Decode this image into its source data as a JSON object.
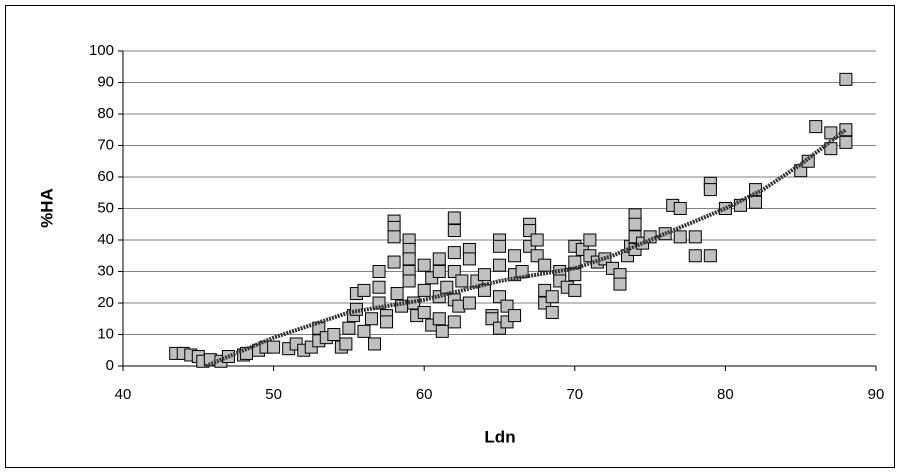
{
  "chart_data": {
    "type": "scatter",
    "x_label": "Ldn",
    "y_label": "%HA",
    "xlim": [
      40,
      90
    ],
    "xticks": [
      40,
      50,
      60,
      70,
      80,
      90
    ],
    "ylim": [
      0,
      100
    ],
    "yticks": [
      0,
      10,
      20,
      30,
      40,
      50,
      60,
      70,
      80,
      90,
      100
    ],
    "grid": true,
    "series": [
      {
        "color": "#c0c0c0",
        "x": [
          43.5,
          44,
          44.5,
          45,
          45.3,
          45.8,
          46.5,
          47,
          48,
          48.2,
          49,
          49.5,
          50,
          51,
          51.5,
          52,
          52.5,
          53,
          53,
          53.5,
          54,
          54.5,
          54.8,
          55,
          55.3,
          55.5,
          55.5,
          56,
          56,
          56.5,
          56.7,
          57,
          57,
          57,
          57.5,
          57.5,
          58,
          58,
          58,
          58,
          58.2,
          58.5,
          59,
          59,
          59,
          59,
          59,
          59.3,
          59.5,
          60,
          60,
          60,
          60.5,
          60.5,
          61,
          61,
          61,
          61,
          61.2,
          61.5,
          62,
          62,
          62,
          62,
          62,
          62,
          62.3,
          62.5,
          63,
          63,
          63,
          63.5,
          64,
          64,
          64.5,
          64.5,
          65,
          65,
          65,
          65,
          65,
          65.5,
          65.5,
          66,
          66,
          66,
          66.5,
          67,
          67,
          67,
          67.5,
          67.5,
          68,
          68,
          68,
          68.5,
          68.5,
          69,
          69,
          69.5,
          70,
          70,
          70,
          70,
          70.5,
          71,
          71,
          71.5,
          72,
          72.5,
          73,
          73,
          73.5,
          73.7,
          74,
          74,
          74,
          74,
          74.5,
          75,
          76,
          76.5,
          77,
          77,
          78,
          78,
          79,
          79,
          79,
          80,
          81,
          82,
          82,
          85,
          85.5,
          86,
          87,
          87,
          88,
          88,
          88
        ],
        "values": [
          4,
          4,
          3.5,
          3,
          1.5,
          2,
          1.5,
          3,
          3.5,
          4,
          5,
          6,
          6,
          5.5,
          7,
          5,
          6,
          8,
          12,
          9,
          10,
          6,
          7,
          12,
          16,
          18,
          23,
          24,
          11,
          15,
          7,
          30,
          25,
          20,
          16,
          14,
          46,
          44,
          41,
          33,
          23,
          19,
          40,
          37,
          34,
          30,
          27,
          20,
          16,
          32,
          24,
          17,
          13,
          28,
          34,
          30,
          22,
          15,
          11,
          25,
          47,
          43,
          36,
          30,
          21,
          14,
          19,
          27,
          37,
          34,
          20,
          27,
          29,
          24,
          16,
          15,
          40,
          38,
          32,
          22,
          12,
          19,
          14,
          35,
          29,
          16,
          30,
          45,
          43,
          38,
          40,
          35,
          32,
          24,
          20,
          17,
          22,
          30,
          27,
          25,
          38,
          33,
          29,
          24,
          37,
          40,
          35,
          33,
          34,
          31,
          29,
          26,
          35,
          38,
          48,
          45,
          41,
          37,
          39,
          41,
          42,
          51,
          50,
          41,
          41,
          35,
          58,
          56,
          35,
          50,
          51,
          56,
          52,
          62,
          65,
          76,
          74,
          69,
          91,
          75,
          71
        ]
      }
    ],
    "trendline": {
      "color": "#333333",
      "x": [
        45.5,
        48,
        50,
        52.5,
        55,
        57.5,
        60,
        62.5,
        65,
        67.5,
        70,
        72.5,
        75,
        77.5,
        80,
        82.5,
        85,
        88
      ],
      "values": [
        0,
        5,
        9,
        13,
        17,
        19,
        21,
        24,
        27,
        29,
        31,
        35,
        40,
        45,
        50,
        56,
        64,
        75
      ]
    }
  }
}
